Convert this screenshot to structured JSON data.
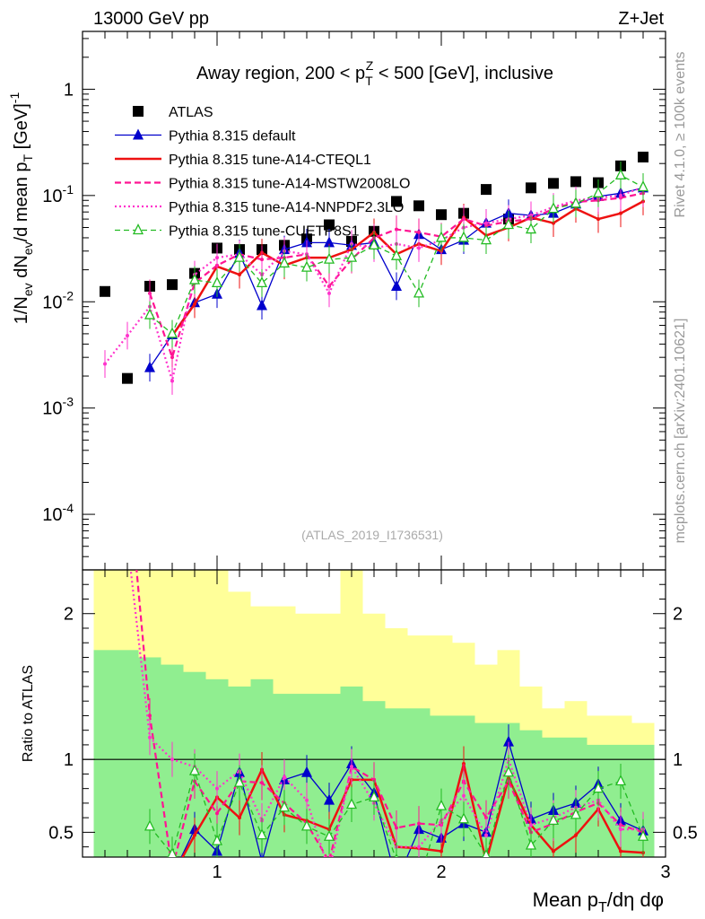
{
  "header": {
    "energy": "13000 GeV pp",
    "process": "Z+Jet",
    "title": "Away region, 200 < p_T^Z < 500 [GeV], inclusive",
    "watermark": "(ATLAS_2019_I1736531)",
    "side_top": "Rivet 4.1.0, ≥ 100k events",
    "side_bottom": "mcplots.cern.ch [arXiv:2401.10621]"
  },
  "chart_data": [
    {
      "type": "scatter",
      "panel": "main",
      "yscale": "log",
      "ylabel": "1/N_ev dN_ev/d mean p_T [GeV]^-1",
      "xlim": [
        0.4,
        3.0
      ],
      "ylim": [
        3e-05,
        3.5
      ],
      "ytick_labels": [
        "10^-4",
        "10^-3",
        "10^-2",
        "10^-1",
        "1"
      ],
      "x": [
        0.5,
        0.6,
        0.7,
        0.8,
        0.9,
        1.0,
        1.1,
        1.2,
        1.3,
        1.4,
        1.5,
        1.6,
        1.7,
        1.8,
        1.9,
        2.0,
        2.1,
        2.2,
        2.3,
        2.4,
        2.5,
        2.6,
        2.7,
        2.8,
        2.9
      ],
      "series": [
        {
          "name": "ATLAS",
          "color": "#000000",
          "style": "square",
          "values": [
            0.0125,
            0.0019,
            0.014,
            0.0145,
            0.0185,
            0.032,
            0.031,
            0.031,
            0.034,
            0.039,
            0.053,
            0.037,
            0.046,
            0.088,
            0.08,
            0.066,
            0.068,
            0.114,
            0.06,
            0.118,
            0.13,
            0.135,
            0.132,
            0.19,
            0.23
          ]
        },
        {
          "name": "Pythia 8.315 default",
          "color": "#0000cc",
          "style": "line-triangle",
          "values": [
            null,
            null,
            0.0024,
            0.0049,
            0.0098,
            0.0118,
            0.0285,
            0.0092,
            0.031,
            0.036,
            0.036,
            0.034,
            0.036,
            0.014,
            0.043,
            0.031,
            0.038,
            0.055,
            0.068,
            0.065,
            0.068,
            0.083,
            0.098,
            0.105,
            0.118
          ]
        },
        {
          "name": "Pythia 8.315 tune-A14-CTEQL1",
          "color": "#ee1111",
          "style": "thick-line",
          "values": [
            null,
            null,
            null,
            0.0048,
            0.0095,
            0.0215,
            0.018,
            0.029,
            0.022,
            0.026,
            0.026,
            0.031,
            0.045,
            0.028,
            0.035,
            0.03,
            0.062,
            0.042,
            0.05,
            0.062,
            0.055,
            0.075,
            0.06,
            0.068,
            0.088
          ]
        },
        {
          "name": "Pythia 8.315 tune-A14-MSTW2008LO",
          "color": "#ff1493",
          "style": "dashed",
          "values": [
            null,
            null,
            0.012,
            0.003,
            0.015,
            0.022,
            0.028,
            0.025,
            0.026,
            0.028,
            0.014,
            0.025,
            0.04,
            0.048,
            0.045,
            0.041,
            0.06,
            0.052,
            0.057,
            0.06,
            0.075,
            0.087,
            0.09,
            0.095,
            0.105
          ]
        },
        {
          "name": "Pythia 8.315 tune-A14-NNPDF2.3LO",
          "color": "#ff33cc",
          "style": "dotted",
          "values": [
            0.0026,
            0.0048,
            0.009,
            0.0018,
            0.018,
            0.026,
            0.028,
            0.018,
            0.03,
            0.028,
            0.012,
            0.035,
            0.032,
            0.035,
            0.032,
            0.038,
            0.05,
            0.055,
            0.06,
            0.065,
            0.078,
            0.09,
            0.095,
            0.1,
            0.12
          ]
        },
        {
          "name": "Pythia 8.315 tune-CUETP8S1",
          "color": "#22bb22",
          "style": "dashed-open-triangle",
          "values": [
            null,
            null,
            0.0075,
            0.005,
            0.016,
            0.015,
            0.026,
            0.015,
            0.023,
            0.021,
            0.025,
            0.026,
            0.034,
            0.027,
            0.012,
            0.04,
            0.04,
            0.038,
            0.053,
            0.048,
            0.075,
            0.084,
            0.105,
            0.155,
            0.12
          ]
        }
      ]
    },
    {
      "type": "line",
      "panel": "ratio",
      "ylabel": "Ratio to ATLAS",
      "xlabel": "Mean p_T/dη dφ",
      "xlim": [
        0.4,
        3.0
      ],
      "ylim": [
        0.33,
        2.3
      ],
      "ytick_labels": [
        "0.5",
        "1",
        "2"
      ],
      "xtick_labels": [
        "1",
        "2",
        "3"
      ],
      "reference": 1.0,
      "band_bins": [
        0.45,
        0.55,
        0.65,
        0.75,
        0.85,
        0.95,
        1.05,
        1.15,
        1.25,
        1.35,
        1.45,
        1.55,
        1.65,
        1.75,
        1.85,
        1.95,
        2.05,
        2.15,
        2.25,
        2.35,
        2.45,
        2.55,
        2.65,
        2.75,
        2.85,
        2.95
      ],
      "band_outer": [
        [
          0.3,
          2.3
        ],
        [
          0.3,
          2.3
        ],
        [
          0.3,
          2.3
        ],
        [
          0.3,
          2.3
        ],
        [
          0.3,
          2.3
        ],
        [
          0.3,
          2.3
        ],
        [
          0.3,
          2.15
        ],
        [
          0.3,
          2.05
        ],
        [
          0.3,
          2.05
        ],
        [
          0.3,
          2.0
        ],
        [
          0.3,
          2.0
        ],
        [
          0.3,
          2.3
        ],
        [
          0.3,
          2.0
        ],
        [
          0.3,
          1.9
        ],
        [
          0.3,
          1.85
        ],
        [
          0.3,
          1.85
        ],
        [
          0.3,
          1.8
        ],
        [
          0.3,
          1.65
        ],
        [
          0.3,
          1.75
        ],
        [
          0.3,
          1.5
        ],
        [
          0.3,
          1.35
        ],
        [
          0.3,
          1.4
        ],
        [
          0.3,
          1.3
        ],
        [
          0.3,
          1.3
        ],
        [
          0.3,
          1.25
        ]
      ],
      "band_inner": [
        [
          0.3,
          1.75
        ],
        [
          0.3,
          1.75
        ],
        [
          0.3,
          1.7
        ],
        [
          0.3,
          1.65
        ],
        [
          0.3,
          1.6
        ],
        [
          0.3,
          1.55
        ],
        [
          0.3,
          1.5
        ],
        [
          0.3,
          1.55
        ],
        [
          0.3,
          1.45
        ],
        [
          0.3,
          1.45
        ],
        [
          0.3,
          1.45
        ],
        [
          0.3,
          1.5
        ],
        [
          0.3,
          1.4
        ],
        [
          0.3,
          1.35
        ],
        [
          0.3,
          1.35
        ],
        [
          0.3,
          1.3
        ],
        [
          0.3,
          1.3
        ],
        [
          0.3,
          1.25
        ],
        [
          0.3,
          1.25
        ],
        [
          0.3,
          1.2
        ],
        [
          0.3,
          1.15
        ],
        [
          0.3,
          1.15
        ],
        [
          0.3,
          1.1
        ],
        [
          0.3,
          1.1
        ],
        [
          0.3,
          1.1
        ]
      ],
      "x": [
        0.5,
        0.6,
        0.7,
        0.8,
        0.9,
        1.0,
        1.1,
        1.2,
        1.3,
        1.4,
        1.5,
        1.6,
        1.7,
        1.8,
        1.9,
        2.0,
        2.1,
        2.2,
        2.3,
        2.4,
        2.5,
        2.6,
        2.7,
        2.8,
        2.9
      ],
      "series": [
        {
          "name": "Pythia 8.315 default",
          "color": "#0000cc",
          "style": "line-triangle",
          "values": [
            null,
            null,
            null,
            0.2,
            0.52,
            0.37,
            0.91,
            0.3,
            0.86,
            0.91,
            0.72,
            0.97,
            0.77,
            0.16,
            0.52,
            0.46,
            0.56,
            0.5,
            1.12,
            0.59,
            0.65,
            0.7,
            0.83,
            0.58,
            0.51
          ]
        },
        {
          "name": "Pythia 8.315 tune-A14-CTEQL1",
          "color": "#ee1111",
          "style": "thick-line",
          "values": [
            null,
            null,
            null,
            0.2,
            0.48,
            0.74,
            0.6,
            0.93,
            0.62,
            0.58,
            0.52,
            0.86,
            0.86,
            0.4,
            0.39,
            0.37,
            0.97,
            0.3,
            0.87,
            0.55,
            0.37,
            0.48,
            0.66,
            0.37,
            0.36
          ]
        },
        {
          "name": "Pythia 8.315 tune-A14-MSTW2008LO",
          "color": "#ff1493",
          "style": "dashed",
          "values": [
            null,
            3.0,
            1.3,
            0.25,
            0.85,
            0.63,
            0.85,
            0.84,
            0.7,
            0.56,
            0.3,
            0.95,
            0.86,
            0.53,
            0.56,
            0.55,
            0.85,
            0.6,
            0.85,
            0.5,
            0.56,
            0.64,
            0.7,
            0.55,
            0.5
          ]
        },
        {
          "name": "Pythia 8.315 tune-A14-NNPDF2.3LO",
          "color": "#ff33cc",
          "style": "dotted",
          "values": [
            null,
            2.5,
            1.15,
            1.0,
            0.95,
            0.8,
            0.92,
            0.58,
            0.88,
            0.72,
            0.23,
            0.95,
            0.7,
            0.4,
            0.4,
            0.58,
            0.75,
            0.48,
            1.0,
            0.55,
            0.6,
            0.67,
            0.72,
            0.52,
            0.52
          ]
        },
        {
          "name": "Pythia 8.315 tune-CUETP8S1",
          "color": "#22bb22",
          "style": "dashed-open-triangle",
          "values": [
            null,
            null,
            0.54,
            0.35,
            0.92,
            0.44,
            0.84,
            0.48,
            0.67,
            0.54,
            0.47,
            0.69,
            0.74,
            0.31,
            0.15,
            0.68,
            0.59,
            0.34,
            0.91,
            0.41,
            0.58,
            0.62,
            0.8,
            0.85,
            0.47
          ]
        }
      ]
    }
  ]
}
